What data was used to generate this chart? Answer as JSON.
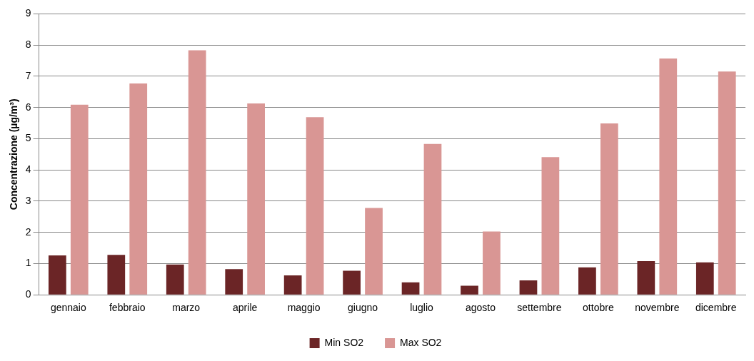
{
  "chart_data": {
    "type": "bar",
    "ylabel": "Concentrazione (µg/m³)",
    "categories": [
      "gennaio",
      "febbraio",
      "marzo",
      "aprile",
      "maggio",
      "giugno",
      "luglio",
      "agosto",
      "settembre",
      "ottobre",
      "novembre",
      "dicembre"
    ],
    "series": [
      {
        "name": "Min SO2",
        "color": "#6b2526",
        "values": [
          1.26,
          1.28,
          0.97,
          0.82,
          0.62,
          0.77,
          0.4,
          0.29,
          0.46,
          0.88,
          1.08,
          1.04
        ]
      },
      {
        "name": "Max SO2",
        "color": "#d99694",
        "values": [
          6.09,
          6.77,
          7.83,
          6.13,
          5.69,
          2.78,
          4.83,
          2.03,
          4.41,
          5.49,
          7.57,
          7.15
        ]
      }
    ],
    "ylim": [
      0,
      9
    ],
    "yticks": [
      0,
      1,
      2,
      3,
      4,
      5,
      6,
      7,
      8,
      9
    ],
    "grid": "y",
    "legend": "bottom"
  }
}
